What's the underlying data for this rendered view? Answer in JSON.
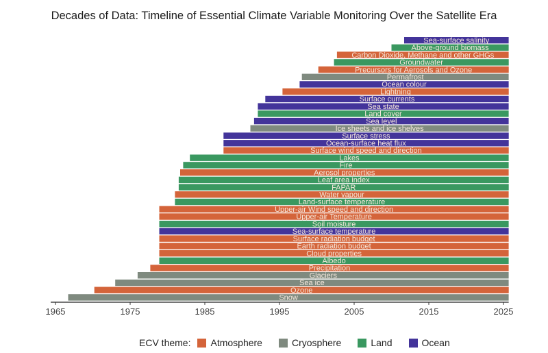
{
  "chart_data": {
    "type": "bar",
    "orientation": "horizontal",
    "title": "Decades of Data: Timeline of Essential Climate Variable Monitoring Over the Satellite Era",
    "xlabel": "",
    "ylabel": "",
    "xlim": [
      1965,
      2025.7
    ],
    "xticks": [
      1965,
      1975,
      1985,
      1995,
      2005,
      2015,
      2025
    ],
    "end_year": 2025.7,
    "grid": false,
    "legend": {
      "title": "ECV theme:",
      "placement": "bottom",
      "entries": [
        {
          "name": "Atmosphere",
          "color": "#D4643A"
        },
        {
          "name": "Cryosphere",
          "color": "#7F8A7F"
        },
        {
          "name": "Land",
          "color": "#3A9860"
        },
        {
          "name": "Ocean",
          "color": "#43349A"
        }
      ]
    },
    "bars": [
      {
        "name": "Sea-surface salinity",
        "theme": "Ocean",
        "start": 2011.7
      },
      {
        "name": "Above-ground biomass",
        "theme": "Land",
        "start": 2010.0
      },
      {
        "name": "Carbon Dioxide, Methane and other GHGs",
        "theme": "Atmosphere",
        "start": 2002.7
      },
      {
        "name": "Groundwater",
        "theme": "Land",
        "start": 2002.3
      },
      {
        "name": "Precursors for Aerosols and Ozone",
        "theme": "Atmosphere",
        "start": 2000.2
      },
      {
        "name": "Permafrost",
        "theme": "Cryosphere",
        "start": 1998.0
      },
      {
        "name": "Ocean colour",
        "theme": "Ocean",
        "start": 1997.7
      },
      {
        "name": "Lightning",
        "theme": "Atmosphere",
        "start": 1995.4
      },
      {
        "name": "Surface currents",
        "theme": "Ocean",
        "start": 1993.1
      },
      {
        "name": "Sea state",
        "theme": "Ocean",
        "start": 1992.1
      },
      {
        "name": "Land cover",
        "theme": "Land",
        "start": 1992.1
      },
      {
        "name": "Sea level",
        "theme": "Ocean",
        "start": 1991.6
      },
      {
        "name": "Ice sheets and ice shelves",
        "theme": "Cryosphere",
        "start": 1991.1
      },
      {
        "name": "Surface stress",
        "theme": "Ocean",
        "start": 1987.5
      },
      {
        "name": "Ocean-surface heat flux",
        "theme": "Ocean",
        "start": 1987.5
      },
      {
        "name": "Surface wind speed and direction",
        "theme": "Atmosphere",
        "start": 1987.5
      },
      {
        "name": "Lakes",
        "theme": "Land",
        "start": 1983.0
      },
      {
        "name": "Fire",
        "theme": "Land",
        "start": 1982.1
      },
      {
        "name": "Aerosol properties",
        "theme": "Atmosphere",
        "start": 1981.7
      },
      {
        "name": "Leaf area index",
        "theme": "Land",
        "start": 1981.5
      },
      {
        "name": "FAPAR",
        "theme": "Land",
        "start": 1981.5
      },
      {
        "name": "Water vapour",
        "theme": "Atmosphere",
        "start": 1981.0
      },
      {
        "name": "Land-surface temperature",
        "theme": "Land",
        "start": 1981.0
      },
      {
        "name": "Upper-air Wind speed and direction",
        "theme": "Atmosphere",
        "start": 1978.9
      },
      {
        "name": "Upper-air Temperature",
        "theme": "Atmosphere",
        "start": 1978.9
      },
      {
        "name": "Soil moisture",
        "theme": "Land",
        "start": 1978.9
      },
      {
        "name": "Sea-surface temperature",
        "theme": "Ocean",
        "start": 1978.9
      },
      {
        "name": "Surface radiation budget",
        "theme": "Atmosphere",
        "start": 1978.9
      },
      {
        "name": "Earth radiation budget",
        "theme": "Atmosphere",
        "start": 1978.9
      },
      {
        "name": "Cloud properties",
        "theme": "Atmosphere",
        "start": 1978.9
      },
      {
        "name": "Albedo",
        "theme": "Land",
        "start": 1978.9
      },
      {
        "name": "Precipitation",
        "theme": "Atmosphere",
        "start": 1977.7
      },
      {
        "name": "Glaciers",
        "theme": "Cryosphere",
        "start": 1976.0
      },
      {
        "name": "Sea ice",
        "theme": "Cryosphere",
        "start": 1973.0
      },
      {
        "name": "Ozone",
        "theme": "Atmosphere",
        "start": 1970.2
      },
      {
        "name": "Snow",
        "theme": "Cryosphere",
        "start": 1966.7
      }
    ]
  }
}
